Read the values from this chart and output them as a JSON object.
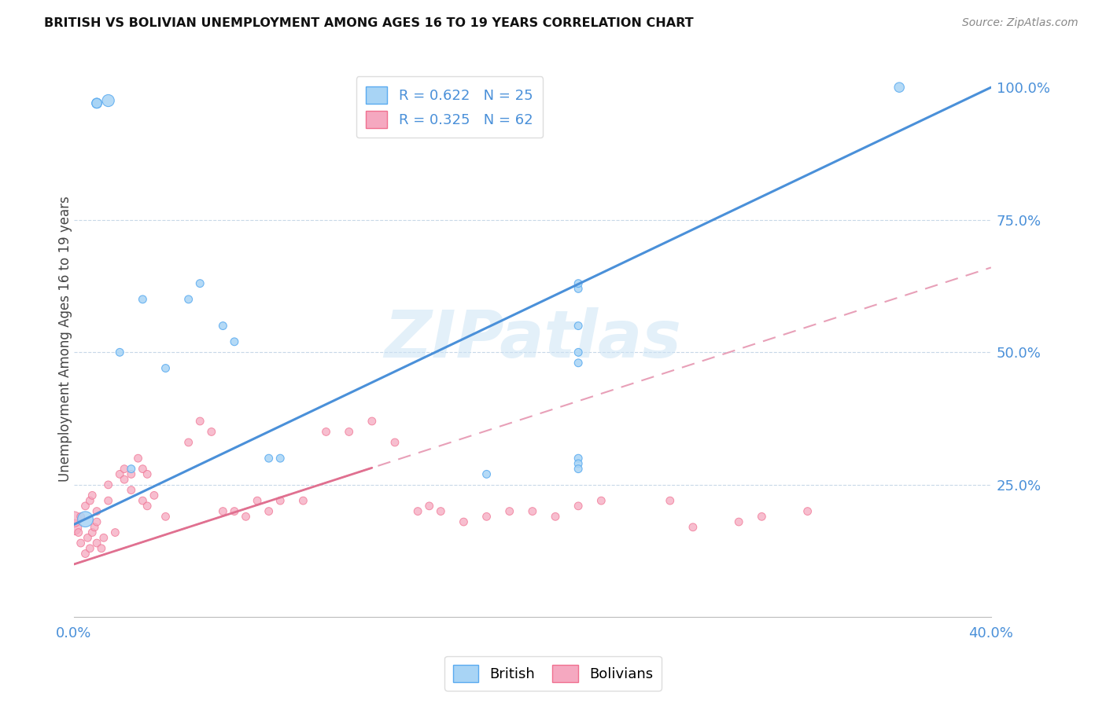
{
  "title": "BRITISH VS BOLIVIAN UNEMPLOYMENT AMONG AGES 16 TO 19 YEARS CORRELATION CHART",
  "source": "Source: ZipAtlas.com",
  "ylabel": "Unemployment Among Ages 16 to 19 years",
  "xlim": [
    0.0,
    0.4
  ],
  "ylim": [
    0.0,
    1.05
  ],
  "xticks": [
    0.0,
    0.08,
    0.16,
    0.24,
    0.32,
    0.4
  ],
  "xticklabels": [
    "0.0%",
    "",
    "",
    "",
    "",
    "40.0%"
  ],
  "yticks_right": [
    0.25,
    0.5,
    0.75,
    1.0
  ],
  "yticklabels_right": [
    "25.0%",
    "50.0%",
    "75.0%",
    "100.0%"
  ],
  "british_R": 0.622,
  "british_N": 25,
  "bolivian_R": 0.325,
  "bolivian_N": 62,
  "british_color": "#a8d4f5",
  "british_edge_color": "#5aabf0",
  "bolivian_color": "#f5a8c0",
  "bolivian_edge_color": "#f07090",
  "blue_line_color": "#4a90d9",
  "pink_line_color": "#e07090",
  "pink_dash_color": "#e8a0b8",
  "watermark_text": "ZIPatlas",
  "background_color": "#ffffff",
  "brit_line_x": [
    0.0,
    0.4
  ],
  "brit_line_y": [
    0.175,
    1.0
  ],
  "bol_line_x": [
    0.0,
    0.4
  ],
  "bol_line_y": [
    0.1,
    0.66
  ],
  "british_x": [
    0.005,
    0.01,
    0.01,
    0.01,
    0.015,
    0.02,
    0.025,
    0.03,
    0.04,
    0.05,
    0.055,
    0.065,
    0.07,
    0.085,
    0.09,
    0.18,
    0.22,
    0.22,
    0.22,
    0.22,
    0.22,
    0.22,
    0.22,
    0.22,
    0.36
  ],
  "british_y": [
    0.185,
    0.97,
    0.97,
    0.97,
    0.975,
    0.5,
    0.28,
    0.6,
    0.47,
    0.6,
    0.63,
    0.55,
    0.52,
    0.3,
    0.3,
    0.27,
    0.62,
    0.63,
    0.55,
    0.5,
    0.48,
    0.3,
    0.29,
    0.28,
    1.0
  ],
  "british_sizes": [
    200,
    80,
    80,
    80,
    120,
    50,
    50,
    50,
    50,
    50,
    50,
    50,
    50,
    50,
    50,
    50,
    50,
    50,
    50,
    50,
    50,
    50,
    50,
    50,
    80
  ],
  "bolivian_x": [
    0.0,
    0.0,
    0.002,
    0.003,
    0.003,
    0.005,
    0.005,
    0.006,
    0.007,
    0.007,
    0.008,
    0.008,
    0.009,
    0.01,
    0.01,
    0.01,
    0.012,
    0.013,
    0.015,
    0.015,
    0.018,
    0.02,
    0.022,
    0.022,
    0.025,
    0.025,
    0.028,
    0.03,
    0.03,
    0.032,
    0.032,
    0.035,
    0.04,
    0.05,
    0.055,
    0.06,
    0.065,
    0.07,
    0.075,
    0.08,
    0.085,
    0.09,
    0.1,
    0.11,
    0.12,
    0.13,
    0.14,
    0.15,
    0.155,
    0.16,
    0.17,
    0.18,
    0.19,
    0.2,
    0.21,
    0.22,
    0.23,
    0.26,
    0.27,
    0.29,
    0.3,
    0.32
  ],
  "bolivian_y": [
    0.17,
    0.185,
    0.16,
    0.14,
    0.19,
    0.12,
    0.21,
    0.15,
    0.13,
    0.22,
    0.16,
    0.23,
    0.17,
    0.14,
    0.2,
    0.18,
    0.13,
    0.15,
    0.22,
    0.25,
    0.16,
    0.27,
    0.26,
    0.28,
    0.24,
    0.27,
    0.3,
    0.22,
    0.28,
    0.21,
    0.27,
    0.23,
    0.19,
    0.33,
    0.37,
    0.35,
    0.2,
    0.2,
    0.19,
    0.22,
    0.2,
    0.22,
    0.22,
    0.35,
    0.35,
    0.37,
    0.33,
    0.2,
    0.21,
    0.2,
    0.18,
    0.19,
    0.2,
    0.2,
    0.19,
    0.21,
    0.22,
    0.22,
    0.17,
    0.18,
    0.19,
    0.2
  ],
  "bolivian_sizes": [
    200,
    200,
    50,
    50,
    50,
    50,
    50,
    50,
    50,
    50,
    50,
    50,
    50,
    50,
    50,
    50,
    50,
    50,
    50,
    50,
    50,
    50,
    50,
    50,
    50,
    50,
    50,
    50,
    50,
    50,
    50,
    50,
    50,
    50,
    50,
    50,
    50,
    50,
    50,
    50,
    50,
    50,
    50,
    50,
    50,
    50,
    50,
    50,
    50,
    50,
    50,
    50,
    50,
    50,
    50,
    50,
    50,
    50,
    50,
    50,
    50,
    50
  ]
}
